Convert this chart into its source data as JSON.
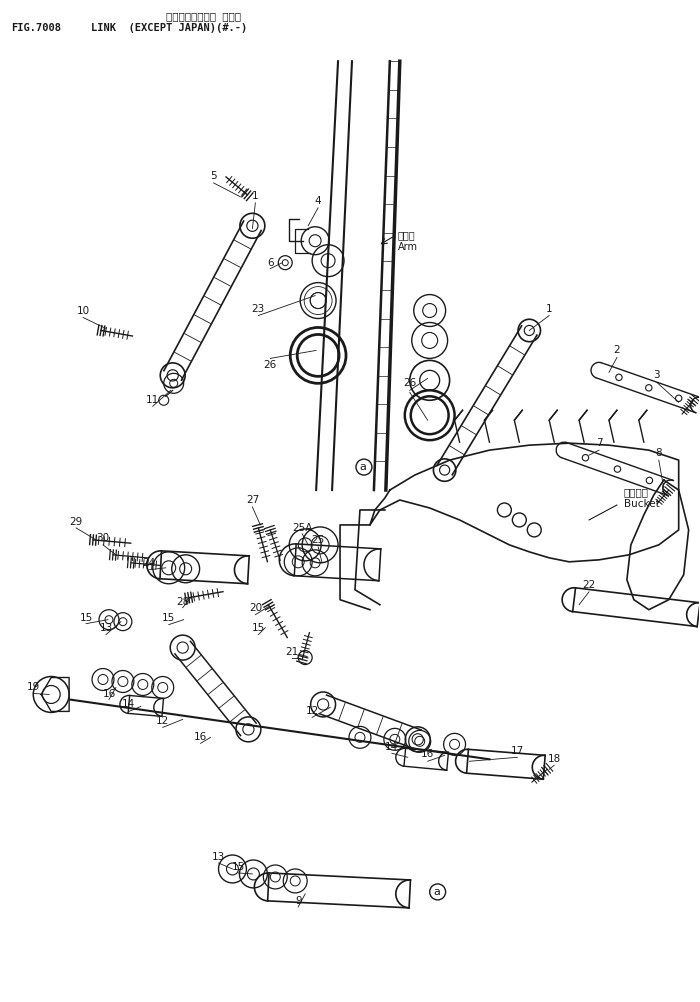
{
  "title_line1": "リンク（カイガイ ヨコ）",
  "title_line2": "LINK  (EXCEPT JAPAN)(#.-)",
  "fig_label": "FIG.7008",
  "background_color": "#ffffff",
  "line_color": "#1a1a1a",
  "fig_width": 7.0,
  "fig_height": 10.02,
  "dpi": 100
}
